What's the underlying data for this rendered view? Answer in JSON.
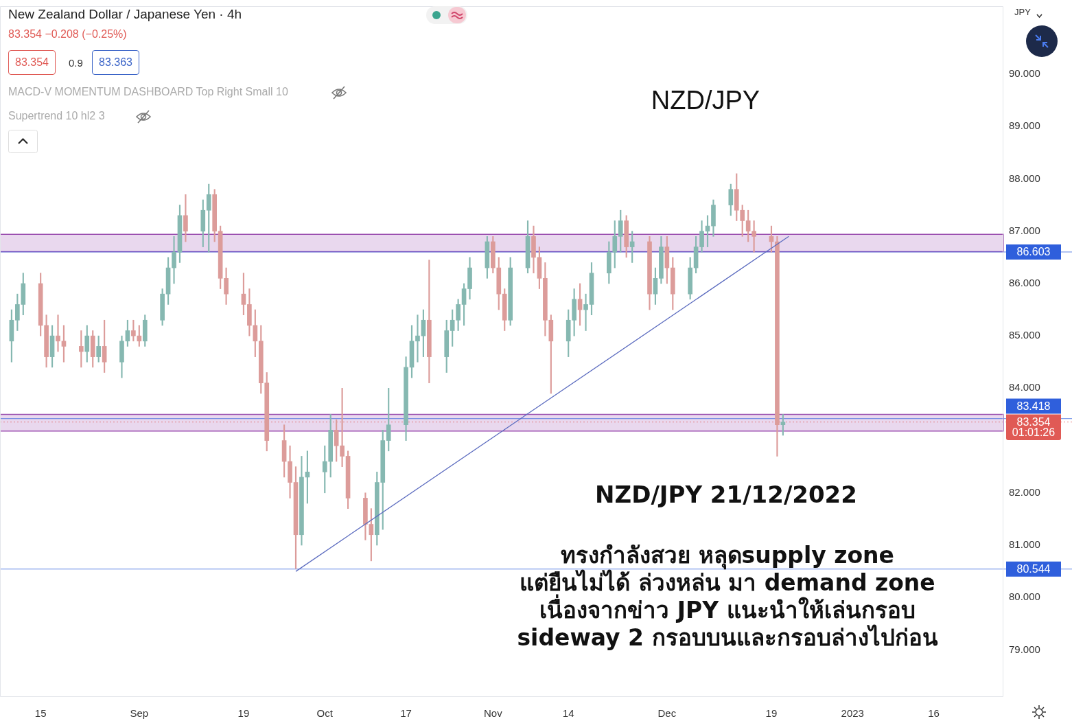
{
  "chart_data": {
    "type": "candlestick",
    "title": "New Zealand Dollar / Japanese Yen · 4h",
    "subtitle": "83.354 −0.208 (−0.25%)",
    "x": [
      "2022-08-10",
      "2022-08-11",
      "2022-08-12",
      "2022-08-15",
      "2022-08-16",
      "2022-08-17",
      "2022-08-18",
      "2022-08-19",
      "2022-08-22",
      "2022-08-23",
      "2022-08-24",
      "2022-08-25",
      "2022-08-26",
      "2022-08-29",
      "2022-08-30",
      "2022-08-31",
      "2022-09-01",
      "2022-09-02",
      "2022-09-05",
      "2022-09-06",
      "2022-09-07",
      "2022-09-08",
      "2022-09-09",
      "2022-09-12",
      "2022-09-13",
      "2022-09-14",
      "2022-09-15",
      "2022-09-16",
      "2022-09-19",
      "2022-09-20",
      "2022-09-21",
      "2022-09-22",
      "2022-09-23",
      "2022-09-26",
      "2022-09-27",
      "2022-09-28",
      "2022-09-29",
      "2022-09-30",
      "2022-10-03",
      "2022-10-04",
      "2022-10-05",
      "2022-10-06",
      "2022-10-07",
      "2022-10-10",
      "2022-10-11",
      "2022-10-12",
      "2022-10-13",
      "2022-10-14",
      "2022-10-17",
      "2022-10-18",
      "2022-10-19",
      "2022-10-20",
      "2022-10-21",
      "2022-10-24",
      "2022-10-25",
      "2022-10-26",
      "2022-10-27",
      "2022-10-28",
      "2022-10-31",
      "2022-11-01",
      "2022-11-02",
      "2022-11-03",
      "2022-11-04",
      "2022-11-07",
      "2022-11-08",
      "2022-11-09",
      "2022-11-10",
      "2022-11-11",
      "2022-11-14",
      "2022-11-15",
      "2022-11-16",
      "2022-11-17",
      "2022-11-18",
      "2022-11-21",
      "2022-11-22",
      "2022-11-23",
      "2022-11-24",
      "2022-11-25",
      "2022-11-28",
      "2022-11-29",
      "2022-11-30",
      "2022-12-01",
      "2022-12-02",
      "2022-12-05",
      "2022-12-06",
      "2022-12-07",
      "2022-12-08",
      "2022-12-09",
      "2022-12-12",
      "2022-12-13",
      "2022-12-14",
      "2022-12-15",
      "2022-12-16",
      "2022-12-19",
      "2022-12-20",
      "2022-12-21"
    ],
    "ohlc": [
      [
        84.9,
        85.5,
        84.5,
        85.3
      ],
      [
        85.3,
        85.8,
        85.1,
        85.6
      ],
      [
        85.6,
        86.2,
        85.4,
        86.0
      ],
      [
        86.0,
        86.2,
        85.0,
        85.2
      ],
      [
        85.2,
        85.4,
        84.4,
        84.6
      ],
      [
        84.6,
        85.2,
        84.4,
        85.0
      ],
      [
        85.0,
        85.4,
        84.7,
        84.9
      ],
      [
        84.9,
        85.2,
        84.5,
        84.8
      ],
      [
        84.8,
        85.1,
        84.4,
        84.7
      ],
      [
        84.7,
        85.2,
        84.5,
        85.0
      ],
      [
        85.0,
        85.1,
        84.4,
        84.6
      ],
      [
        84.6,
        85.0,
        84.5,
        84.8
      ],
      [
        84.8,
        85.3,
        84.3,
        84.5
      ],
      [
        84.5,
        85.0,
        84.2,
        84.9
      ],
      [
        84.9,
        85.3,
        84.8,
        85.1
      ],
      [
        85.1,
        85.3,
        84.9,
        85.0
      ],
      [
        85.0,
        85.2,
        84.8,
        84.9
      ],
      [
        84.9,
        85.4,
        84.8,
        85.3
      ],
      [
        85.3,
        85.9,
        85.2,
        85.8
      ],
      [
        85.8,
        86.5,
        85.6,
        86.3
      ],
      [
        86.3,
        86.9,
        86.0,
        86.6
      ],
      [
        86.6,
        87.5,
        86.4,
        87.3
      ],
      [
        87.3,
        87.7,
        86.8,
        87.0
      ],
      [
        87.0,
        87.6,
        86.7,
        87.4
      ],
      [
        87.4,
        87.9,
        86.6,
        87.7
      ],
      [
        87.7,
        87.8,
        86.8,
        87.0
      ],
      [
        87.0,
        87.1,
        85.9,
        86.1
      ],
      [
        86.1,
        86.3,
        85.6,
        85.8
      ],
      [
        85.8,
        86.2,
        85.4,
        85.6
      ],
      [
        85.6,
        85.9,
        85.0,
        85.2
      ],
      [
        85.2,
        85.5,
        84.6,
        84.9
      ],
      [
        84.9,
        85.2,
        83.9,
        84.1
      ],
      [
        84.1,
        84.3,
        82.8,
        83.0
      ],
      [
        83.0,
        83.3,
        82.3,
        82.6
      ],
      [
        82.6,
        82.9,
        81.9,
        82.2
      ],
      [
        82.2,
        82.5,
        80.55,
        81.2
      ],
      [
        81.2,
        82.7,
        81.0,
        82.3
      ],
      [
        82.3,
        82.8,
        81.8,
        82.4
      ],
      [
        82.4,
        82.9,
        82.0,
        82.6
      ],
      [
        82.6,
        83.5,
        82.3,
        83.2
      ],
      [
        83.2,
        83.4,
        82.6,
        82.9
      ],
      [
        82.9,
        84.0,
        82.5,
        82.7
      ],
      [
        82.7,
        82.8,
        81.7,
        81.9
      ],
      [
        81.9,
        82.0,
        81.1,
        81.4
      ],
      [
        81.4,
        81.7,
        80.7,
        81.2
      ],
      [
        81.2,
        82.4,
        81.0,
        82.2
      ],
      [
        82.2,
        83.2,
        81.3,
        83.0
      ],
      [
        83.0,
        84.0,
        82.8,
        83.3
      ],
      [
        83.3,
        84.6,
        83.0,
        84.4
      ],
      [
        84.4,
        85.2,
        84.2,
        84.9
      ],
      [
        84.9,
        85.4,
        84.5,
        85.0
      ],
      [
        85.0,
        85.5,
        84.6,
        85.3
      ],
      [
        85.3,
        86.45,
        84.1,
        84.6
      ],
      [
        84.6,
        85.3,
        84.3,
        85.1
      ],
      [
        85.1,
        85.5,
        84.8,
        85.3
      ],
      [
        85.3,
        85.7,
        85.1,
        85.6
      ],
      [
        85.6,
        86.0,
        85.2,
        85.9
      ],
      [
        85.9,
        86.5,
        85.7,
        86.3
      ],
      [
        86.3,
        86.9,
        86.1,
        86.8
      ],
      [
        86.8,
        86.9,
        86.2,
        86.3
      ],
      [
        86.3,
        86.5,
        85.5,
        85.8
      ],
      [
        85.8,
        85.9,
        85.1,
        85.3
      ],
      [
        85.3,
        86.5,
        85.2,
        86.3
      ],
      [
        86.3,
        87.2,
        86.2,
        86.9
      ],
      [
        86.9,
        87.1,
        86.2,
        86.5
      ],
      [
        86.5,
        86.7,
        85.9,
        86.1
      ],
      [
        86.1,
        86.4,
        85.0,
        85.3
      ],
      [
        85.3,
        85.4,
        83.9,
        84.9
      ],
      [
        84.9,
        85.5,
        84.6,
        85.3
      ],
      [
        85.3,
        85.9,
        85.0,
        85.7
      ],
      [
        85.7,
        86.0,
        85.2,
        85.5
      ],
      [
        85.5,
        85.8,
        85.1,
        85.6
      ],
      [
        85.6,
        86.4,
        85.4,
        86.2
      ],
      [
        86.2,
        86.8,
        86.0,
        86.6
      ],
      [
        86.6,
        87.2,
        86.3,
        86.9
      ],
      [
        86.9,
        87.4,
        86.6,
        87.2
      ],
      [
        87.2,
        87.3,
        86.5,
        86.7
      ],
      [
        86.7,
        87.0,
        86.4,
        86.8
      ],
      [
        86.8,
        86.9,
        85.5,
        85.8
      ],
      [
        85.8,
        86.3,
        85.6,
        86.1
      ],
      [
        86.1,
        86.9,
        86.0,
        86.7
      ],
      [
        86.7,
        86.9,
        86.0,
        86.3
      ],
      [
        86.3,
        86.5,
        85.5,
        85.8
      ],
      [
        85.8,
        86.5,
        85.7,
        86.3
      ],
      [
        86.3,
        86.9,
        86.2,
        86.7
      ],
      [
        86.7,
        87.2,
        86.6,
        87.0
      ],
      [
        87.0,
        87.3,
        86.7,
        87.1
      ],
      [
        87.1,
        87.6,
        86.9,
        87.5
      ],
      [
        87.5,
        87.9,
        87.3,
        87.8
      ],
      [
        87.8,
        88.1,
        87.2,
        87.4
      ],
      [
        87.4,
        87.5,
        86.9,
        87.2
      ],
      [
        87.2,
        87.4,
        86.8,
        87.0
      ],
      [
        87.0,
        87.2,
        86.6,
        86.9
      ],
      [
        86.9,
        87.1,
        86.6,
        86.8
      ],
      [
        86.8,
        86.9,
        82.7,
        83.3
      ],
      [
        83.3,
        83.5,
        83.1,
        83.354
      ]
    ],
    "colors": [
      "#86b8b1",
      "#86b8b1",
      "#86b8b1",
      "#dc9c9a",
      "#dc9c9a",
      "#86b8b1",
      "#dc9c9a",
      "#dc9c9a",
      "#dc9c9a",
      "#86b8b1",
      "#dc9c9a",
      "#86b8b1",
      "#dc9c9a",
      "#86b8b1",
      "#86b8b1",
      "#dc9c9a",
      "#dc9c9a",
      "#86b8b1",
      "#86b8b1",
      "#86b8b1",
      "#86b8b1",
      "#86b8b1",
      "#dc9c9a",
      "#86b8b1",
      "#86b8b1",
      "#dc9c9a",
      "#dc9c9a",
      "#dc9c9a",
      "#dc9c9a",
      "#dc9c9a",
      "#dc9c9a",
      "#dc9c9a",
      "#dc9c9a",
      "#dc9c9a",
      "#dc9c9a",
      "#dc9c9a",
      "#86b8b1",
      "#86b8b1",
      "#86b8b1",
      "#86b8b1",
      "#dc9c9a",
      "#dc9c9a",
      "#dc9c9a",
      "#dc9c9a",
      "#dc9c9a",
      "#86b8b1",
      "#86b8b1",
      "#86b8b1",
      "#86b8b1",
      "#86b8b1",
      "#86b8b1",
      "#86b8b1",
      "#dc9c9a",
      "#86b8b1",
      "#86b8b1",
      "#86b8b1",
      "#86b8b1",
      "#86b8b1",
      "#86b8b1",
      "#dc9c9a",
      "#dc9c9a",
      "#dc9c9a",
      "#86b8b1",
      "#86b8b1",
      "#dc9c9a",
      "#dc9c9a",
      "#dc9c9a",
      "#dc9c9a",
      "#86b8b1",
      "#86b8b1",
      "#dc9c9a",
      "#86b8b1",
      "#86b8b1",
      "#86b8b1",
      "#86b8b1",
      "#86b8b1",
      "#dc9c9a",
      "#86b8b1",
      "#dc9c9a",
      "#86b8b1",
      "#86b8b1",
      "#dc9c9a",
      "#dc9c9a",
      "#86b8b1",
      "#86b8b1",
      "#86b8b1",
      "#86b8b1",
      "#86b8b1",
      "#86b8b1",
      "#dc9c9a",
      "#dc9c9a",
      "#dc9c9a",
      "#dc9c9a",
      "#dc9c9a",
      "#dc9c9a",
      "#86b8b1"
    ],
    "series": [
      {
        "type": "line",
        "x": [
          "2022-09-28",
          "2022-12-22"
        ],
        "values": [
          80.5,
          86.9
        ],
        "color": "#5b6bbf"
      }
    ],
    "xlim": [
      "2022-08-08",
      "2023-01-28"
    ],
    "xticks": [
      {
        "value": "2022-08-15",
        "label": "15"
      },
      {
        "value": "2022-09-01",
        "label": "Sep"
      },
      {
        "value": "2022-09-19",
        "label": "19"
      },
      {
        "value": "2022-10-03",
        "label": "Oct"
      },
      {
        "value": "2022-10-17",
        "label": "17"
      },
      {
        "value": "2022-11-01",
        "label": "Nov"
      },
      {
        "value": "2022-11-14",
        "label": "14"
      },
      {
        "value": "2022-12-01",
        "label": "Dec"
      },
      {
        "value": "2022-12-19",
        "label": "19"
      },
      {
        "value": "2023-01-02",
        "label": "2023"
      },
      {
        "value": "2023-01-16",
        "label": "16"
      }
    ],
    "ylim": [
      78.1,
      91.3
    ],
    "yticks": [
      {
        "value": 79,
        "label": "79.000"
      },
      {
        "value": 80,
        "label": "80.000"
      },
      {
        "value": 81,
        "label": "81.000"
      },
      {
        "value": 82,
        "label": "82.000"
      },
      {
        "value": 84,
        "label": "84.000"
      },
      {
        "value": 85,
        "label": "85.000"
      },
      {
        "value": 86,
        "label": "86.000"
      },
      {
        "value": 87,
        "label": "87.000"
      },
      {
        "value": 88,
        "label": "88.000"
      },
      {
        "value": 89,
        "label": "89.000"
      },
      {
        "value": 90,
        "label": "90.000"
      }
    ],
    "ref_lines": [
      {
        "axis": "y",
        "value": 86.603,
        "label": "86.603",
        "color": "#2f5fdc"
      },
      {
        "axis": "y",
        "value": 80.544,
        "label": "80.544",
        "color": "#2f5fdc"
      },
      {
        "axis": "y",
        "value": 83.418,
        "label": "83.418",
        "color": "#2f5fdc"
      },
      {
        "axis": "y",
        "value": 83.354,
        "label": "83.354",
        "color": "#e05a55",
        "line_style": "dotted"
      }
    ],
    "bands": [
      {
        "axis": "y",
        "from": 86.61,
        "to": 86.94,
        "color": "#9b4fb0"
      },
      {
        "axis": "y",
        "from": 83.18,
        "to": 83.5,
        "color": "#9b4fb0"
      }
    ],
    "annotations": [
      "83.354",
      "0.9",
      "83.363",
      "MACD-V MOMENTUM DASHBOARD Top Right Small 10",
      "Supertrend 10 hl2 3",
      "JPY",
      "NZD/JPY",
      "NZD/JPY 21/12/2022",
      "ทรงกำลังสวย หลุดsupply zone",
      "แต่ยืนไม่ได้ ล่วงหล่น มา demand zone",
      "เนื่องจากข่าว JPY แนะนำให้เล่นกรอบ",
      "sideway 2 กรอบบนและกรอบล่างไปก่อน",
      "01:01:26"
    ],
    "grid": false,
    "legend": false
  }
}
